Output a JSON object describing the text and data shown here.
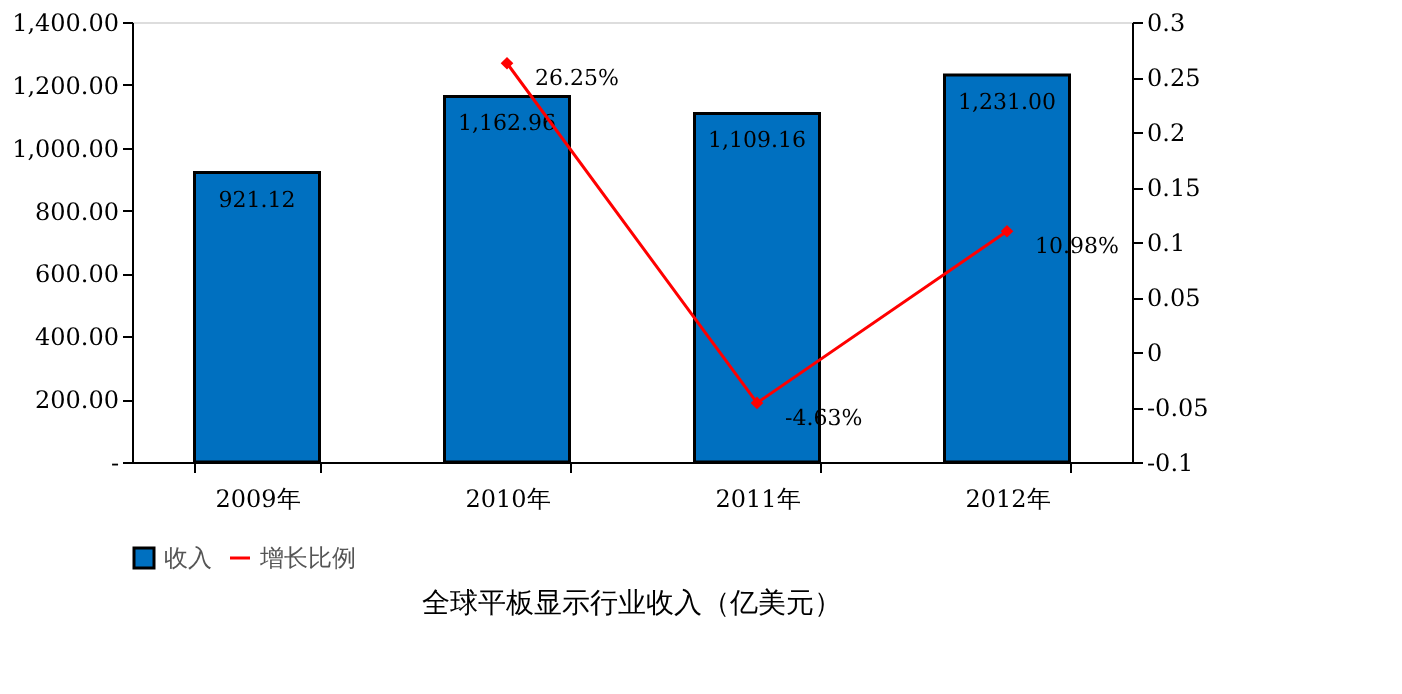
{
  "chart_data": {
    "type": "bar",
    "title": "全球平板显示行业收入（亿美元）",
    "categories": [
      "2009年",
      "2010年",
      "2011年",
      "2012年"
    ],
    "series": [
      {
        "name": "收入",
        "color": "#0070c0",
        "values": [
          921.12,
          1162.96,
          1109.16,
          1231.0
        ],
        "value_labels": [
          "921.12",
          "1,162.96",
          "1,109.16",
          "1,231.00"
        ]
      },
      {
        "name": "增长比例",
        "type": "line",
        "axis": "y2",
        "color": "#ff0000",
        "marker": "diamond",
        "values": [
          null,
          0.2625,
          -0.0463,
          0.1098
        ],
        "value_labels": [
          null,
          "26.25%",
          "-4.63%",
          "10.98%"
        ]
      }
    ],
    "ylim": [
      0,
      1400
    ],
    "yticks": [
      {
        "value": 0,
        "label": "-"
      },
      {
        "value": 200,
        "label": "200.00"
      },
      {
        "value": 400,
        "label": "400.00"
      },
      {
        "value": 600,
        "label": "600.00"
      },
      {
        "value": 800,
        "label": "800.00"
      },
      {
        "value": 1000,
        "label": "1,000.00"
      },
      {
        "value": 1200,
        "label": "1,200.00"
      },
      {
        "value": 1400,
        "label": "1,400.00"
      }
    ],
    "y2lim": [
      -0.1,
      0.3
    ],
    "y2ticks": [
      -0.1,
      -0.05,
      0,
      0.05,
      0.1,
      0.15,
      0.2,
      0.25,
      0.3
    ],
    "grid": false,
    "legend": "bottom"
  }
}
